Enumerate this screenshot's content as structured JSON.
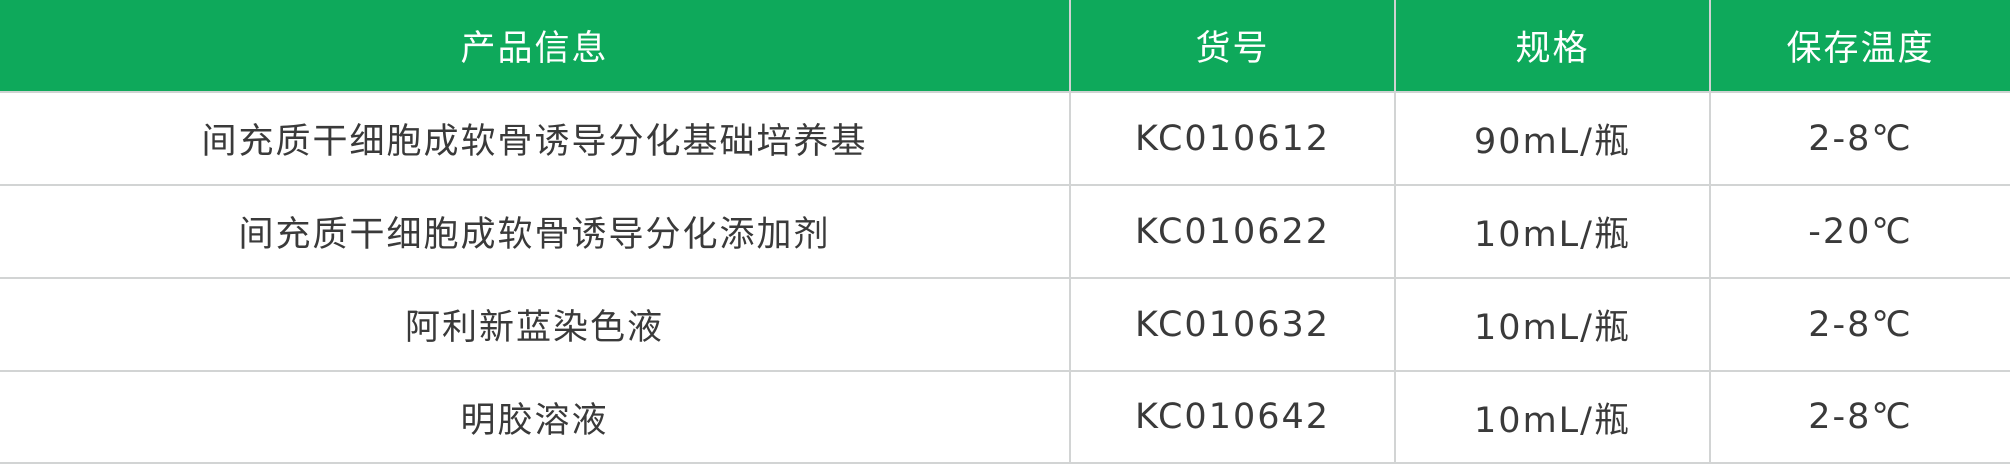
{
  "colors": {
    "header_bg": "#0ea95b",
    "header_text": "#ffffff",
    "body_text": "#3a3a3a",
    "border": "#d2d4d4"
  },
  "table": {
    "headers": [
      "产品信息",
      "货号",
      "规格",
      "保存温度"
    ],
    "rows": [
      [
        "间充质干细胞成软骨诱导分化基础培养基",
        "KC010612",
        "90mL/瓶",
        "2-8℃"
      ],
      [
        "间充质干细胞成软骨诱导分化添加剂",
        "KC010622",
        "10mL/瓶",
        "-20℃"
      ],
      [
        "阿利新蓝染色液",
        "KC010632",
        "10mL/瓶",
        "2-8℃"
      ],
      [
        "明胶溶液",
        "KC010642",
        "10mL/瓶",
        "2-8℃"
      ]
    ]
  }
}
